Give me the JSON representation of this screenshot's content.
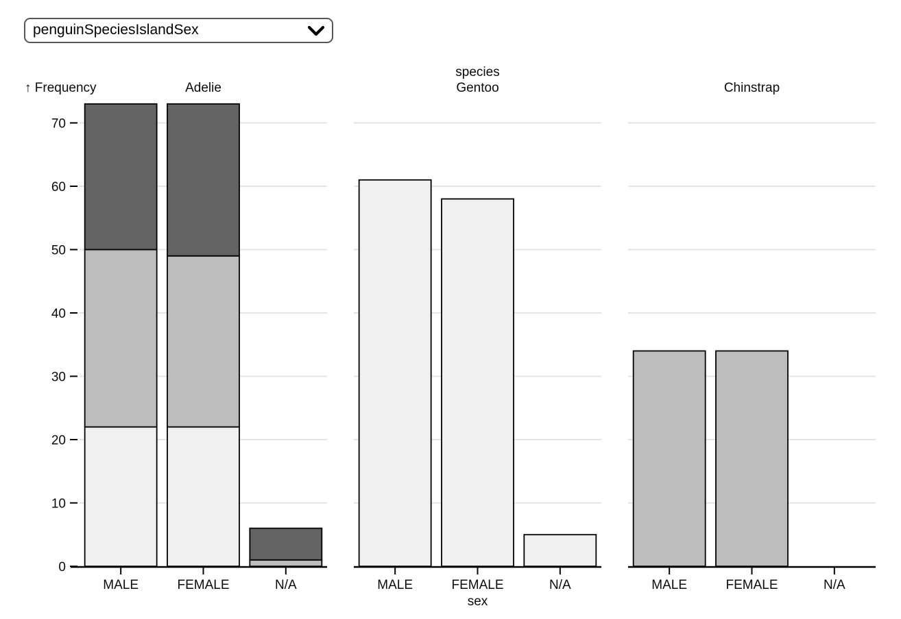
{
  "controls": {
    "dataset_select": {
      "value": "penguinSpeciesIslandSex",
      "options": [
        "penguinSpeciesIslandSex"
      ]
    }
  },
  "chart_data": {
    "type": "bar",
    "stacked": true,
    "title": "",
    "ylabel": "Frequency",
    "ylabel_display": "↑ Frequency",
    "xlabel": "sex",
    "facet_axis_label": "species",
    "categories": [
      "MALE",
      "FEMALE",
      "N/A"
    ],
    "yticks": [
      0,
      10,
      20,
      30,
      40,
      50,
      60,
      70
    ],
    "ylim": [
      0,
      73
    ],
    "grid": true,
    "legend": "none",
    "colors": {
      "light": "#f0f0f0",
      "medium": "#bdbdbd",
      "dark": "#636363",
      "bar_stroke": "#000000",
      "grid": "#e4e4e4",
      "axis": "#000000"
    },
    "facets": [
      {
        "label": "Adelie",
        "bars": [
          {
            "category": "MALE",
            "total": 73,
            "segments": [
              {
                "shade": "light",
                "value": 22
              },
              {
                "shade": "medium",
                "value": 28
              },
              {
                "shade": "dark",
                "value": 23
              }
            ]
          },
          {
            "category": "FEMALE",
            "total": 73,
            "segments": [
              {
                "shade": "light",
                "value": 22
              },
              {
                "shade": "medium",
                "value": 27
              },
              {
                "shade": "dark",
                "value": 24
              }
            ]
          },
          {
            "category": "N/A",
            "total": 6,
            "segments": [
              {
                "shade": "medium",
                "value": 1
              },
              {
                "shade": "dark",
                "value": 5
              }
            ]
          }
        ]
      },
      {
        "label": "Gentoo",
        "bars": [
          {
            "category": "MALE",
            "total": 61,
            "segments": [
              {
                "shade": "light",
                "value": 61
              }
            ]
          },
          {
            "category": "FEMALE",
            "total": 58,
            "segments": [
              {
                "shade": "light",
                "value": 58
              }
            ]
          },
          {
            "category": "N/A",
            "total": 5,
            "segments": [
              {
                "shade": "light",
                "value": 5
              }
            ]
          }
        ]
      },
      {
        "label": "Chinstrap",
        "bars": [
          {
            "category": "MALE",
            "total": 34,
            "segments": [
              {
                "shade": "medium",
                "value": 34
              }
            ]
          },
          {
            "category": "FEMALE",
            "total": 34,
            "segments": [
              {
                "shade": "medium",
                "value": 34
              }
            ]
          },
          {
            "category": "N/A",
            "total": 0,
            "segments": []
          }
        ]
      }
    ]
  }
}
